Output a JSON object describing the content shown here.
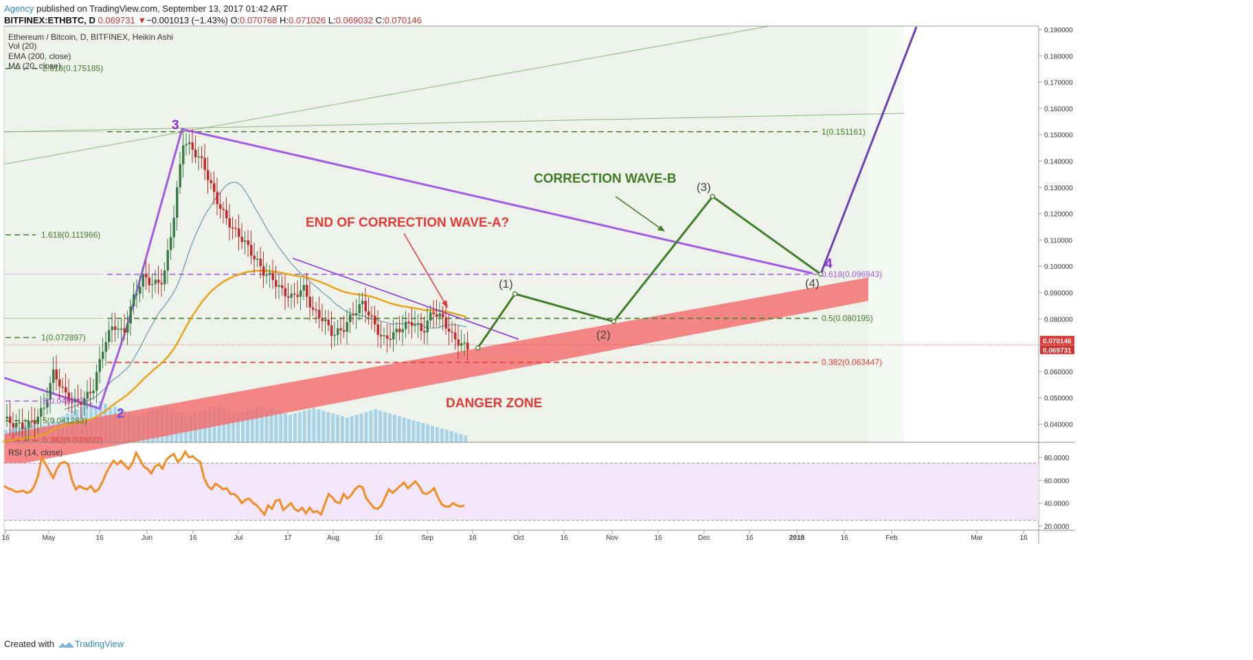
{
  "header": {
    "agency": "Agency",
    "published": " published on TradingView.com, September 13, 2017 01:42 ART",
    "symbol": "BITFINEX:ETHBTC, D",
    "price": "0.069731",
    "change_arrow": "▼",
    "change": "−0.001013 (−1.43%)",
    "o_label": "O:",
    "o_value": "0.070768",
    "h_label": "H:",
    "h_value": "0.071026",
    "l_label": "L:",
    "l_value": "0.069032",
    "c_label": "C:",
    "c_value": "0.070146"
  },
  "legend": {
    "title": "Ethereum / Bitcoin, D, BITFINEX, Heikin Ashi",
    "vol": "Vol (20)",
    "ema": "EMA (200, close)",
    "ma": "MA (20, close)",
    "rsi": "RSI (14, close)"
  },
  "footer": {
    "created_with": "Created with",
    "brand": "TradingView"
  },
  "colors": {
    "green_fib": "#3e7c26",
    "purple": "#a259e6",
    "red": "#e53935",
    "rsi_line": "#f28c1e",
    "ema": "#e8a317",
    "volume": "#8fc7e8",
    "up_candle": "#3a7d44",
    "down_candle": "#c62828",
    "zone": "#f46a6a"
  },
  "chart_data": [
    {
      "type": "line",
      "title": "Ethereum / Bitcoin, D, BITFINEX, Heikin Ashi",
      "y_ticks": [
        "0.190000",
        "0.180000",
        "0.170000",
        "0.160000",
        "0.150000",
        "0.140000",
        "0.130000",
        "0.120000",
        "0.110000",
        "0.100000",
        "0.090000",
        "0.080000",
        "0.070000",
        "0.060000",
        "0.050000",
        "0.040000"
      ],
      "ylim": [
        0.035,
        0.191
      ],
      "x_ticks": [
        "16",
        "May",
        "16",
        "Jun",
        "16",
        "Jul",
        "17",
        "Aug",
        "16",
        "Sep",
        "16",
        "Oct",
        "16",
        "Nov",
        "16",
        "Dec",
        "16",
        "2018",
        "16",
        "Feb",
        "Mar",
        "16"
      ],
      "price_labels": {
        "last": "0.070146",
        "current": "0.069731"
      },
      "fib_levels": [
        {
          "label": "2.618(0.175185)",
          "value": 0.175185
        },
        {
          "label": "1(0.151161)",
          "value": 0.151161
        },
        {
          "label": "1.618(0.111966)",
          "value": 0.111966
        },
        {
          "label": "0.618(0.096943)",
          "value": 0.096943
        },
        {
          "label": "0.5(0.080195)",
          "value": 0.080195
        },
        {
          "label": "1(0.072897)",
          "value": 0.072897
        },
        {
          "label": "0.382(0.063447)",
          "value": 0.063447
        },
        {
          "label": "5(0.041283)",
          "value": 0.041283
        },
        {
          "label": "0.382(0.033822)",
          "value": 0.033822
        },
        {
          "label": "8(0.048747)",
          "value": 0.048747
        }
      ],
      "annotations": [
        "END OF CORRECTION WAVE-A?",
        "CORRECTION WAVE-B",
        "DANGER ZONE",
        "3",
        "2",
        "4",
        "(1)",
        "(2)",
        "(3)",
        "(4)"
      ],
      "projection_path": [
        {
          "x": "2017-09-16",
          "y": 0.069
        },
        {
          "x": "2017-09-28",
          "y": 0.0895
        },
        {
          "x": "2017-10-30",
          "y": 0.079
        },
        {
          "x": "2017-12-01",
          "y": 0.1265
        },
        {
          "x": "2018-01-05",
          "y": 0.097
        },
        {
          "x": "2018-02-05",
          "y": 0.191
        }
      ]
    },
    {
      "type": "line",
      "title": "RSI (14, close)",
      "y_ticks": [
        "80.0000",
        "60.0000",
        "40.0000",
        "20.0000"
      ],
      "ylim": [
        10,
        93
      ],
      "bands": [
        75,
        25
      ],
      "series": [
        {
          "values": [
            55,
            53,
            52,
            50,
            50,
            51,
            49,
            50,
            55,
            64,
            80,
            74,
            68,
            62,
            70,
            75,
            76,
            74,
            60,
            52,
            55,
            53,
            52,
            55,
            50,
            52,
            58,
            66,
            72,
            77,
            74,
            77,
            73,
            70,
            75,
            84,
            78,
            72,
            70,
            66,
            72,
            74,
            70,
            78,
            81,
            83,
            76,
            79,
            85,
            80,
            81,
            78,
            76,
            62,
            55,
            52,
            57,
            55,
            52,
            53,
            48,
            48,
            45,
            40,
            43,
            44,
            40,
            38,
            34,
            30,
            38,
            35,
            42,
            43,
            34,
            37,
            40,
            35,
            33,
            36,
            31,
            36,
            32,
            33,
            30,
            39,
            48,
            45,
            41,
            40,
            48,
            44,
            47,
            52,
            55,
            54,
            44,
            40,
            36,
            35,
            38,
            45,
            52,
            49,
            52,
            55,
            58,
            53,
            56,
            59,
            55,
            49,
            48,
            50,
            53,
            45,
            39,
            37,
            37,
            40,
            38,
            37,
            38
          ]
        }
      ]
    }
  ]
}
